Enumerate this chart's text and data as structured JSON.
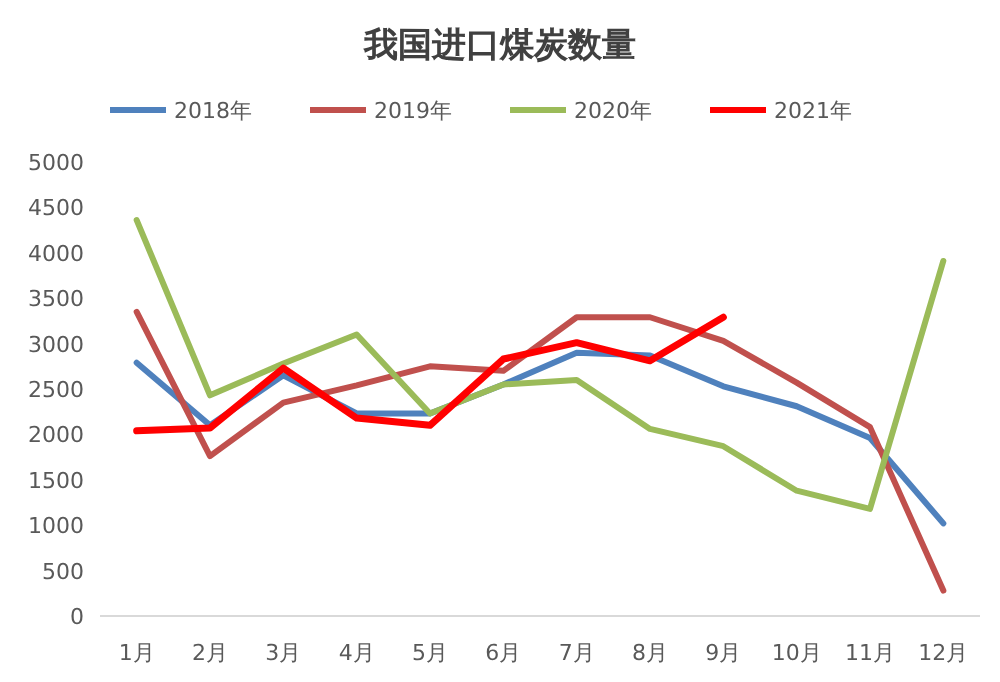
{
  "chart_data": {
    "type": "line",
    "title": "我国进口煤炭数量",
    "categories": [
      "1月",
      "2月",
      "3月",
      "4月",
      "5月",
      "6月",
      "7月",
      "8月",
      "9月",
      "10月",
      "11月",
      "12月"
    ],
    "series": [
      {
        "name": "2018年",
        "color": "#4f81bd",
        "values": [
          2790,
          2100,
          2650,
          2230,
          2230,
          2550,
          2900,
          2870,
          2530,
          2310,
          1960,
          1020
        ]
      },
      {
        "name": "2019年",
        "color": "#c0504d",
        "values": [
          3350,
          1760,
          2350,
          2540,
          2750,
          2700,
          3290,
          3290,
          3030,
          2570,
          2080,
          280
        ]
      },
      {
        "name": "2020年",
        "color": "#9bbb59",
        "values": [
          4360,
          2430,
          2780,
          3100,
          2230,
          2550,
          2600,
          2060,
          1870,
          1380,
          1180,
          3910
        ]
      },
      {
        "name": "2021年",
        "color": "#ff0000",
        "values": [
          2040,
          2070,
          2730,
          2180,
          2100,
          2830,
          3010,
          2810,
          3290,
          null,
          null,
          null
        ]
      }
    ],
    "ylim": [
      0,
      5000
    ],
    "yticks": [
      0,
      500,
      1000,
      1500,
      2000,
      2500,
      3000,
      3500,
      4000,
      4500,
      5000
    ],
    "legend": "top",
    "grid": false,
    "marker": "none",
    "line_style": "solid"
  }
}
